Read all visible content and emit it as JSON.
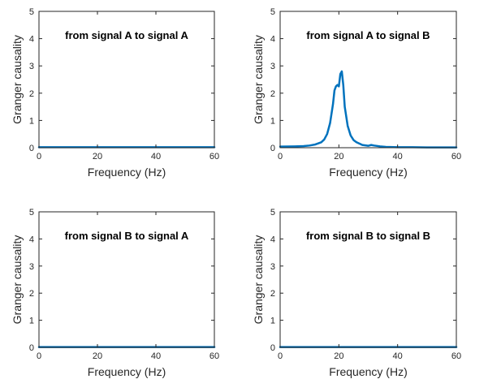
{
  "chart_data": [
    {
      "type": "line",
      "title": "from signal A to signal A",
      "xlabel": "Frequency  (Hz)",
      "ylabel": "Granger causality",
      "xlim": [
        0,
        60
      ],
      "ylim": [
        0,
        5
      ],
      "xticks": [
        0,
        20,
        40,
        60
      ],
      "yticks": [
        0,
        1,
        2,
        3,
        4,
        5
      ],
      "grid": false,
      "line_color": "#0072BD",
      "series": [
        {
          "x": [
            0,
            10,
            20,
            30,
            40,
            50,
            60
          ],
          "y": [
            0.02,
            0.02,
            0.02,
            0.02,
            0.02,
            0.02,
            0.02
          ]
        }
      ]
    },
    {
      "type": "line",
      "title": "from signal A to signal B",
      "xlabel": "Frequency  (Hz)",
      "ylabel": "Granger causality",
      "xlim": [
        0,
        60
      ],
      "ylim": [
        0,
        5
      ],
      "xticks": [
        0,
        20,
        40,
        60
      ],
      "yticks": [
        0,
        1,
        2,
        3,
        4,
        5
      ],
      "grid": false,
      "line_color": "#0072BD",
      "series": [
        {
          "x": [
            0,
            5,
            8,
            10,
            12,
            14,
            15,
            16,
            17,
            18,
            18.5,
            19,
            19.5,
            20,
            20.5,
            21,
            21.5,
            22,
            23,
            24,
            25,
            26,
            28,
            30,
            31,
            32,
            34,
            36,
            40,
            45,
            50,
            55,
            60
          ],
          "y": [
            0.04,
            0.05,
            0.06,
            0.08,
            0.12,
            0.2,
            0.3,
            0.5,
            0.9,
            1.6,
            2.1,
            2.25,
            2.3,
            2.25,
            2.7,
            2.8,
            2.3,
            1.5,
            0.8,
            0.45,
            0.28,
            0.2,
            0.1,
            0.07,
            0.1,
            0.08,
            0.05,
            0.03,
            0.02,
            0.02,
            0.01,
            0.01,
            0.01
          ]
        }
      ]
    },
    {
      "type": "line",
      "title": "from signal B to signal A",
      "xlabel": "Frequency  (Hz)",
      "ylabel": "Granger causality",
      "xlim": [
        0,
        60
      ],
      "ylim": [
        0,
        5
      ],
      "xticks": [
        0,
        20,
        40,
        60
      ],
      "yticks": [
        0,
        1,
        2,
        3,
        4,
        5
      ],
      "grid": false,
      "line_color": "#0072BD",
      "series": [
        {
          "x": [
            0,
            10,
            20,
            30,
            40,
            50,
            60
          ],
          "y": [
            0.01,
            0.01,
            0.01,
            0.01,
            0.01,
            0.01,
            0.01
          ]
        }
      ]
    },
    {
      "type": "line",
      "title": "from signal B to signal B",
      "xlabel": "Frequency  (Hz)",
      "ylabel": "Granger causality",
      "xlim": [
        0,
        60
      ],
      "ylim": [
        0,
        5
      ],
      "xticks": [
        0,
        20,
        40,
        60
      ],
      "yticks": [
        0,
        1,
        2,
        3,
        4,
        5
      ],
      "grid": false,
      "line_color": "#0072BD",
      "series": [
        {
          "x": [
            0,
            10,
            20,
            30,
            40,
            50,
            60
          ],
          "y": [
            0.01,
            0.01,
            0.01,
            0.01,
            0.01,
            0.01,
            0.01
          ]
        }
      ]
    }
  ]
}
